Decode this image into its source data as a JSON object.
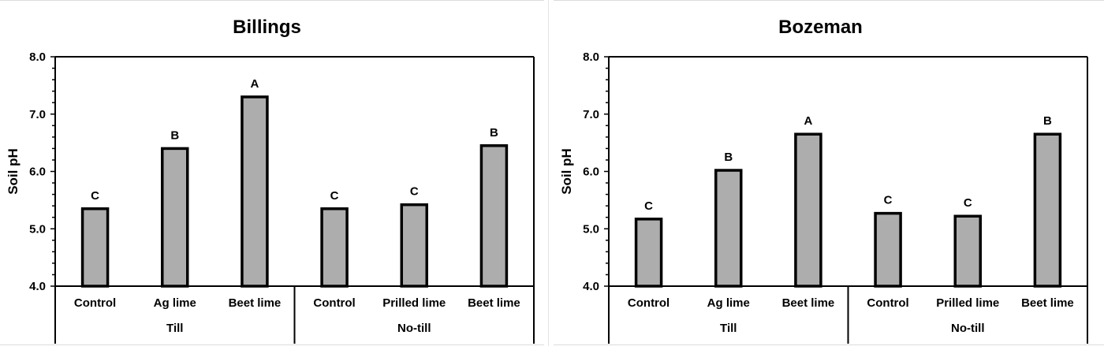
{
  "chart_data": [
    {
      "type": "bar",
      "title": "Billings",
      "ylabel": "Soil pH",
      "ylim": [
        4.0,
        8.0
      ],
      "yticks": [
        "4.0",
        "5.0",
        "6.0",
        "7.0",
        "8.0"
      ],
      "categories": [
        "Control",
        "Ag lime",
        "Beet lime",
        "Control",
        "Prilled lime",
        "Beet lime"
      ],
      "groups": [
        {
          "label": "Till",
          "count": 3
        },
        {
          "label": "No-till",
          "count": 3
        }
      ],
      "values": [
        5.35,
        6.4,
        7.3,
        5.35,
        5.42,
        6.45
      ],
      "letters": [
        "C",
        "B",
        "A",
        "C",
        "C",
        "B"
      ],
      "bar_color": "#adadad",
      "grid": false
    },
    {
      "type": "bar",
      "title": "Bozeman",
      "ylabel": "Soil pH",
      "ylim": [
        4.0,
        8.0
      ],
      "yticks": [
        "4.0",
        "5.0",
        "6.0",
        "7.0",
        "8.0"
      ],
      "categories": [
        "Control",
        "Ag lime",
        "Beet lime",
        "Control",
        "Prilled lime",
        "Beet lime"
      ],
      "groups": [
        {
          "label": "Till",
          "count": 3
        },
        {
          "label": "No-till",
          "count": 3
        }
      ],
      "values": [
        5.17,
        6.02,
        6.65,
        5.27,
        5.22,
        6.65
      ],
      "letters": [
        "C",
        "B",
        "A",
        "C",
        "C",
        "B"
      ],
      "bar_color": "#adadad",
      "grid": false
    }
  ]
}
